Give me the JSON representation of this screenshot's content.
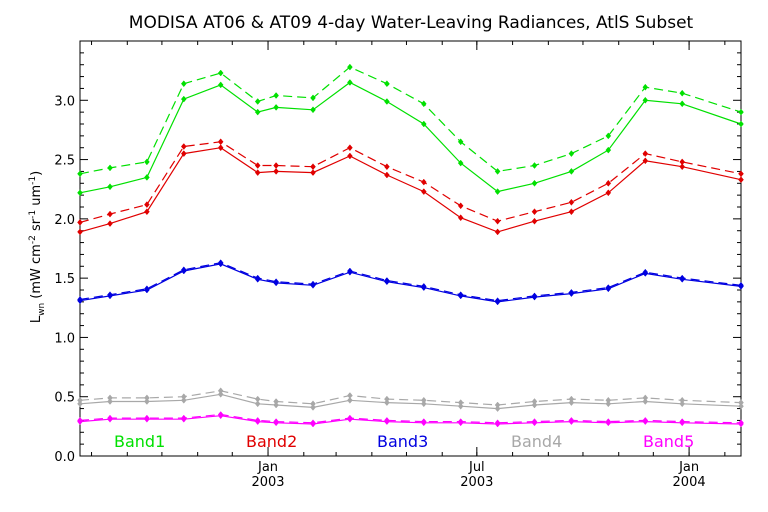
{
  "chart_data": {
    "type": "line",
    "title": "MODISA AT06 & AT09 4-day Water-Leaving Radiances, AtlS Subset",
    "ylabel_main": "L",
    "ylabel_sub": "wn",
    "ylabel_units": "(mW cm",
    "ylabel_units_tail": "sr",
    "ylabel_units_tail2": "um",
    "ylabel_exp_cm": "-2",
    "ylabel_exp_sr": "-1",
    "ylabel_exp_um": "-1",
    "ylim": [
      0.0,
      3.5
    ],
    "yticks": [
      "0.0",
      "0.5",
      "1.0",
      "1.5",
      "2.0",
      "2.5",
      "3.0"
    ],
    "xlim": [
      "2002-07-22",
      "2004-02-15"
    ],
    "xticks": [
      {
        "date": "2003-01-01",
        "label1": "Jan",
        "label2": "2003"
      },
      {
        "date": "2003-07-01",
        "label1": "Jul",
        "label2": "2003"
      },
      {
        "date": "2004-01-01",
        "label1": "Jan",
        "label2": "2004"
      }
    ],
    "dates": [
      "2002-07-22",
      "2002-08-17",
      "2002-09-18",
      "2002-10-20",
      "2002-11-21",
      "2002-12-23",
      "2003-01-08",
      "2003-02-09",
      "2003-03-13",
      "2003-04-14",
      "2003-05-16",
      "2003-06-17",
      "2003-07-19",
      "2003-08-20",
      "2003-09-21",
      "2003-10-23",
      "2003-11-24",
      "2003-12-26",
      "2004-02-15"
    ],
    "series": [
      {
        "name": "Band1",
        "color": "#00e000",
        "style": "solid",
        "values": [
          2.22,
          2.27,
          2.35,
          3.01,
          3.13,
          2.9,
          2.94,
          2.92,
          3.15,
          2.99,
          2.8,
          2.47,
          2.23,
          2.3,
          2.4,
          2.58,
          3.0,
          2.97,
          2.8
        ]
      },
      {
        "name": "Band1",
        "color": "#00e000",
        "style": "dashed",
        "values": [
          2.38,
          2.43,
          2.48,
          3.14,
          3.23,
          2.99,
          3.04,
          3.02,
          3.28,
          3.14,
          2.97,
          2.65,
          2.4,
          2.45,
          2.55,
          2.7,
          3.11,
          3.06,
          2.9
        ]
      },
      {
        "name": "Band2",
        "color": "#e00000",
        "style": "solid",
        "values": [
          1.89,
          1.96,
          2.06,
          2.55,
          2.6,
          2.39,
          2.4,
          2.39,
          2.53,
          2.37,
          2.23,
          2.01,
          1.89,
          1.98,
          2.06,
          2.22,
          2.49,
          2.44,
          2.33
        ]
      },
      {
        "name": "Band2",
        "color": "#e00000",
        "style": "dashed",
        "values": [
          1.97,
          2.04,
          2.12,
          2.61,
          2.65,
          2.45,
          2.45,
          2.44,
          2.6,
          2.44,
          2.31,
          2.11,
          1.98,
          2.06,
          2.14,
          2.3,
          2.55,
          2.48,
          2.38
        ]
      },
      {
        "name": "Band3",
        "color": "#0000e0",
        "style": "solid",
        "values": [
          1.31,
          1.35,
          1.4,
          1.56,
          1.62,
          1.49,
          1.46,
          1.44,
          1.55,
          1.47,
          1.42,
          1.35,
          1.3,
          1.34,
          1.37,
          1.41,
          1.54,
          1.49,
          1.43
        ]
      },
      {
        "name": "Band3",
        "color": "#0000e0",
        "style": "dashed",
        "values": [
          1.32,
          1.36,
          1.41,
          1.57,
          1.63,
          1.5,
          1.47,
          1.45,
          1.56,
          1.48,
          1.43,
          1.36,
          1.31,
          1.35,
          1.38,
          1.42,
          1.55,
          1.5,
          1.44
        ]
      },
      {
        "name": "Band4",
        "color": "#a8a8a8",
        "style": "solid",
        "values": [
          0.44,
          0.46,
          0.46,
          0.47,
          0.52,
          0.44,
          0.43,
          0.41,
          0.47,
          0.45,
          0.44,
          0.42,
          0.4,
          0.43,
          0.45,
          0.44,
          0.46,
          0.44,
          0.42
        ]
      },
      {
        "name": "Band4",
        "color": "#a8a8a8",
        "style": "dashed",
        "values": [
          0.47,
          0.49,
          0.49,
          0.5,
          0.55,
          0.48,
          0.46,
          0.44,
          0.51,
          0.48,
          0.47,
          0.45,
          0.43,
          0.46,
          0.48,
          0.47,
          0.49,
          0.47,
          0.45
        ]
      },
      {
        "name": "Band5",
        "color": "#ff00ff",
        "style": "solid",
        "values": [
          0.29,
          0.31,
          0.31,
          0.31,
          0.34,
          0.29,
          0.28,
          0.27,
          0.31,
          0.29,
          0.28,
          0.28,
          0.27,
          0.28,
          0.29,
          0.28,
          0.29,
          0.28,
          0.27
        ]
      },
      {
        "name": "Band5",
        "color": "#ff00ff",
        "style": "dashed",
        "values": [
          0.3,
          0.32,
          0.32,
          0.32,
          0.35,
          0.3,
          0.29,
          0.28,
          0.32,
          0.3,
          0.29,
          0.29,
          0.28,
          0.29,
          0.3,
          0.29,
          0.3,
          0.29,
          0.28
        ]
      }
    ],
    "legend": [
      {
        "name": "Band1",
        "color": "#00e000"
      },
      {
        "name": "Band2",
        "color": "#e00000"
      },
      {
        "name": "Band3",
        "color": "#0000e0"
      },
      {
        "name": "Band4",
        "color": "#a8a8a8"
      },
      {
        "name": "Band5",
        "color": "#ff00ff"
      }
    ],
    "legend_placement": "bottom-inside",
    "grid": false
  }
}
